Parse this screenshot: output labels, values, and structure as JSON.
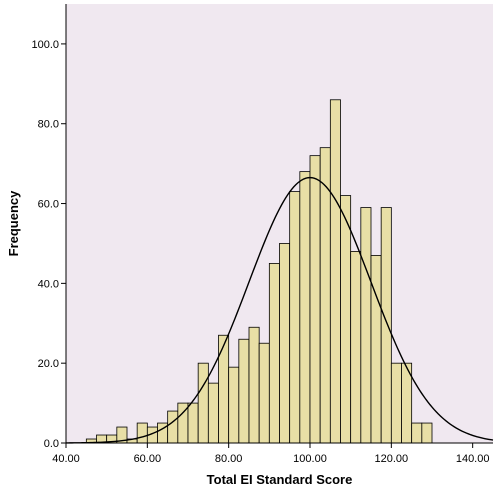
{
  "chart_data": {
    "type": "bar",
    "subtype": "histogram-with-normal-curve",
    "xlabel": "Total EI Standard Score",
    "ylabel": "Frequency",
    "xlim": [
      40,
      145
    ],
    "ylim": [
      0,
      110
    ],
    "x_ticks": [
      "40.00",
      "60.00",
      "80.00",
      "100.00",
      "120.00",
      "140.00"
    ],
    "x_tick_values": [
      40,
      60,
      80,
      100,
      120,
      140
    ],
    "y_ticks": [
      "0.0",
      "20.0",
      "40.0",
      "60.0",
      "80.0",
      "100.0"
    ],
    "y_tick_values": [
      0,
      20,
      40,
      60,
      80,
      100
    ],
    "bin_width": 2.5,
    "bins": [
      {
        "x0": 45.0,
        "count": 1
      },
      {
        "x0": 47.5,
        "count": 2
      },
      {
        "x0": 50.0,
        "count": 2
      },
      {
        "x0": 52.5,
        "count": 4
      },
      {
        "x0": 55.0,
        "count": 1
      },
      {
        "x0": 57.5,
        "count": 5
      },
      {
        "x0": 60.0,
        "count": 4
      },
      {
        "x0": 62.5,
        "count": 5
      },
      {
        "x0": 65.0,
        "count": 8
      },
      {
        "x0": 67.5,
        "count": 10
      },
      {
        "x0": 70.0,
        "count": 10
      },
      {
        "x0": 72.5,
        "count": 20
      },
      {
        "x0": 75.0,
        "count": 15
      },
      {
        "x0": 77.5,
        "count": 27
      },
      {
        "x0": 80.0,
        "count": 19
      },
      {
        "x0": 82.5,
        "count": 26
      },
      {
        "x0": 85.0,
        "count": 29
      },
      {
        "x0": 87.5,
        "count": 25
      },
      {
        "x0": 90.0,
        "count": 45
      },
      {
        "x0": 92.5,
        "count": 50
      },
      {
        "x0": 95.0,
        "count": 63
      },
      {
        "x0": 97.5,
        "count": 68
      },
      {
        "x0": 100.0,
        "count": 72
      },
      {
        "x0": 102.5,
        "count": 74
      },
      {
        "x0": 105.0,
        "count": 86
      },
      {
        "x0": 107.5,
        "count": 62
      },
      {
        "x0": 110.0,
        "count": 48
      },
      {
        "x0": 112.5,
        "count": 59
      },
      {
        "x0": 115.0,
        "count": 47
      },
      {
        "x0": 117.5,
        "count": 59
      },
      {
        "x0": 120.0,
        "count": 20
      },
      {
        "x0": 122.5,
        "count": 20
      },
      {
        "x0": 125.0,
        "count": 5
      },
      {
        "x0": 127.5,
        "count": 5
      }
    ],
    "normal_curve": {
      "mean": 100,
      "sd": 15,
      "peak": 66.5
    },
    "colors": {
      "plot_background": "#f0e8f0",
      "bar_fill": "#e8dfa6",
      "bar_stroke": "#000000",
      "curve": "#000000"
    },
    "grid": false,
    "legend": "none"
  }
}
